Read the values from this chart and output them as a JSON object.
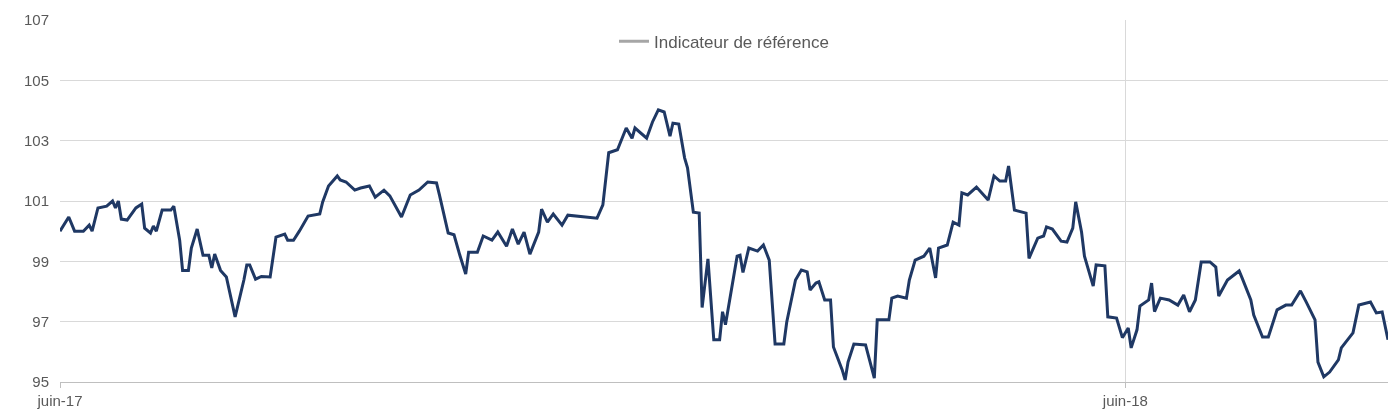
{
  "chart_data": {
    "type": "line",
    "ylim": [
      95,
      107
    ],
    "yticks": [
      95,
      97,
      99,
      101,
      103,
      105,
      107
    ],
    "xlim": [
      "2017-06-01",
      "2018-08-30"
    ],
    "xticks": [
      {
        "value": "2017-06-01",
        "label": "juin-17"
      },
      {
        "value": "2018-06-01",
        "label": "juin-18"
      }
    ],
    "grid": true,
    "legend": "top",
    "marker": "none",
    "line_style": "solid",
    "series": [
      {
        "color": "#1f3864",
        "x": [
          "2017-06-01",
          "2017-06-04",
          "2017-06-06",
          "2017-06-09",
          "2017-06-11",
          "2017-06-12",
          "2017-06-14",
          "2017-06-17",
          "2017-06-19",
          "2017-06-20",
          "2017-06-21",
          "2017-06-22",
          "2017-06-24",
          "2017-06-27",
          "2017-06-29",
          "2017-06-30",
          "2017-07-02",
          "2017-07-03",
          "2017-07-04",
          "2017-07-06",
          "2017-07-09",
          "2017-07-10",
          "2017-07-12",
          "2017-07-13",
          "2017-07-15",
          "2017-07-16",
          "2017-07-18",
          "2017-07-20",
          "2017-07-22",
          "2017-07-23",
          "2017-07-24",
          "2017-07-26",
          "2017-07-28",
          "2017-07-31",
          "2017-08-03",
          "2017-08-04",
          "2017-08-05",
          "2017-08-07",
          "2017-08-09",
          "2017-08-12",
          "2017-08-14",
          "2017-08-17",
          "2017-08-18",
          "2017-08-20",
          "2017-08-22",
          "2017-08-25",
          "2017-08-29",
          "2017-08-30",
          "2017-09-01",
          "2017-09-04",
          "2017-09-05",
          "2017-09-07",
          "2017-09-10",
          "2017-09-12",
          "2017-09-15",
          "2017-09-17",
          "2017-09-20",
          "2017-09-22",
          "2017-09-26",
          "2017-09-29",
          "2017-10-02",
          "2017-10-05",
          "2017-10-08",
          "2017-10-09",
          "2017-10-12",
          "2017-10-14",
          "2017-10-16",
          "2017-10-18",
          "2017-10-19",
          "2017-10-22",
          "2017-10-24",
          "2017-10-27",
          "2017-10-29",
          "2017-11-01",
          "2017-11-03",
          "2017-11-05",
          "2017-11-07",
          "2017-11-09",
          "2017-11-12",
          "2017-11-13",
          "2017-11-15",
          "2017-11-17",
          "2017-11-20",
          "2017-11-22",
          "2017-12-02",
          "2017-12-04",
          "2017-12-06",
          "2017-12-09",
          "2017-12-12",
          "2017-12-14",
          "2017-12-15",
          "2017-12-19",
          "2017-12-21",
          "2017-12-23",
          "2017-12-25",
          "2017-12-27",
          "2017-12-28",
          "2017-12-30",
          "2018-01-01",
          "2018-01-02",
          "2018-01-04",
          "2018-01-06",
          "2018-01-07",
          "2018-01-09",
          "2018-01-11",
          "2018-01-13",
          "2018-01-14",
          "2018-01-15",
          "2018-01-19",
          "2018-01-20",
          "2018-01-21",
          "2018-01-23",
          "2018-01-26",
          "2018-01-28",
          "2018-01-30",
          "2018-02-01",
          "2018-02-04",
          "2018-02-05",
          "2018-02-08",
          "2018-02-10",
          "2018-02-12",
          "2018-02-13",
          "2018-02-15",
          "2018-02-16",
          "2018-02-18",
          "2018-02-20",
          "2018-02-21",
          "2018-02-24",
          "2018-02-25",
          "2018-02-26",
          "2018-02-28",
          "2018-03-04",
          "2018-03-07",
          "2018-03-08",
          "2018-03-12",
          "2018-03-13",
          "2018-03-15",
          "2018-03-18",
          "2018-03-19",
          "2018-03-21",
          "2018-03-24",
          "2018-03-26",
          "2018-03-28",
          "2018-03-29",
          "2018-04-01",
          "2018-04-03",
          "2018-04-05",
          "2018-04-06",
          "2018-04-08",
          "2018-04-11",
          "2018-04-15",
          "2018-04-17",
          "2018-04-19",
          "2018-04-21",
          "2018-04-22",
          "2018-04-24",
          "2018-04-28",
          "2018-04-29",
          "2018-05-02",
          "2018-05-04",
          "2018-05-05",
          "2018-05-07",
          "2018-05-10",
          "2018-05-12",
          "2018-05-14",
          "2018-05-15",
          "2018-05-17",
          "2018-05-18",
          "2018-05-21",
          "2018-05-22",
          "2018-05-25",
          "2018-05-26",
          "2018-05-29",
          "2018-05-31",
          "2018-06-02",
          "2018-06-03",
          "2018-06-05",
          "2018-06-06",
          "2018-06-09",
          "2018-06-10",
          "2018-06-11",
          "2018-06-13",
          "2018-06-16",
          "2018-06-19",
          "2018-06-21",
          "2018-06-23",
          "2018-06-25",
          "2018-06-27",
          "2018-06-30",
          "2018-07-02",
          "2018-07-03",
          "2018-07-06",
          "2018-07-10",
          "2018-07-11",
          "2018-07-14",
          "2018-07-15",
          "2018-07-18",
          "2018-07-20",
          "2018-07-23",
          "2018-07-26",
          "2018-07-28",
          "2018-07-31",
          "2018-08-02",
          "2018-08-05",
          "2018-08-06",
          "2018-08-08",
          "2018-08-10",
          "2018-08-13",
          "2018-08-14",
          "2018-08-18",
          "2018-08-20",
          "2018-08-24",
          "2018-08-26",
          "2018-08-28",
          "2018-08-30"
        ],
        "values": [
          100.0,
          100.47,
          100.0,
          100.0,
          100.2,
          100.0,
          100.77,
          100.83,
          101.0,
          100.77,
          101.0,
          100.4,
          100.37,
          100.77,
          100.9,
          100.1,
          99.94,
          100.17,
          100.0,
          100.7,
          100.7,
          100.83,
          99.7,
          98.7,
          98.7,
          99.44,
          100.07,
          99.2,
          99.2,
          98.78,
          99.24,
          98.7,
          98.48,
          97.16,
          98.38,
          98.88,
          98.88,
          98.41,
          98.5,
          98.48,
          99.8,
          99.9,
          99.7,
          99.7,
          100.0,
          100.5,
          100.57,
          100.97,
          101.5,
          101.83,
          101.7,
          101.63,
          101.36,
          101.43,
          101.5,
          101.13,
          101.36,
          101.17,
          100.47,
          101.2,
          101.36,
          101.63,
          101.6,
          101.2,
          99.94,
          99.88,
          99.2,
          98.58,
          99.3,
          99.3,
          99.84,
          99.7,
          99.97,
          99.5,
          100.07,
          99.57,
          99.97,
          99.24,
          99.97,
          100.73,
          100.3,
          100.57,
          100.2,
          100.53,
          100.43,
          100.87,
          102.6,
          102.7,
          103.42,
          103.08,
          103.42,
          103.08,
          103.62,
          104.02,
          103.95,
          103.15,
          103.58,
          103.55,
          102.43,
          102.1,
          100.63,
          100.6,
          97.47,
          99.08,
          96.4,
          96.4,
          97.33,
          96.9,
          99.17,
          99.2,
          98.63,
          99.44,
          99.34,
          99.54,
          99.04,
          96.26,
          96.26,
          96.99,
          98.38,
          98.71,
          98.65,
          98.05,
          98.28,
          98.32,
          97.72,
          97.72,
          96.16,
          95.4,
          95.07,
          95.66,
          96.26,
          96.23,
          95.13,
          97.06,
          97.06,
          97.78,
          97.85,
          97.78,
          98.38,
          99.04,
          99.17,
          99.44,
          98.45,
          99.44,
          99.54,
          100.3,
          100.2,
          101.27,
          101.2,
          101.46,
          101.03,
          101.83,
          101.66,
          101.66,
          102.16,
          100.7,
          100.6,
          99.1,
          99.77,
          99.84,
          100.14,
          100.07,
          99.67,
          99.64,
          100.1,
          100.97,
          99.97,
          99.17,
          98.18,
          98.88,
          98.85,
          97.16,
          97.12,
          96.47,
          96.79,
          96.13,
          96.73,
          97.52,
          97.72,
          98.28,
          97.33,
          97.78,
          97.72,
          97.55,
          97.88,
          97.33,
          97.72,
          98.98,
          98.98,
          98.81,
          97.85,
          98.38,
          98.68,
          98.45,
          97.72,
          97.22,
          96.49,
          96.49,
          97.39,
          97.55,
          97.55,
          98.02,
          97.65,
          97.06,
          95.66,
          95.17,
          95.33,
          95.73,
          96.13,
          96.63,
          97.55,
          97.65,
          97.29,
          97.32,
          96.4
        ]
      },
      {
        "name": "Indicateur de référence",
        "color": "#a6a6a6",
        "values": [
          null
        ]
      }
    ]
  }
}
